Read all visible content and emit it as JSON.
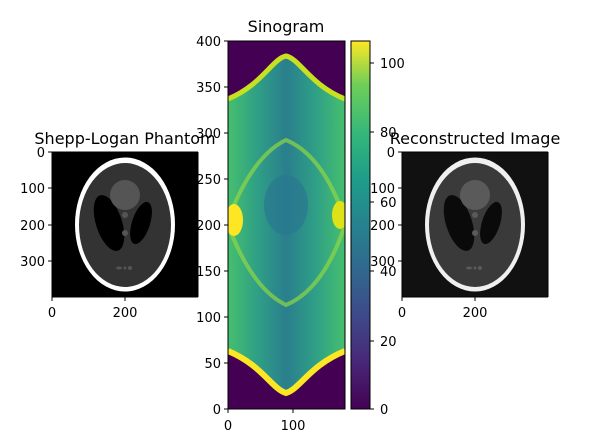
{
  "chart_data": [
    {
      "type": "image",
      "title": "Shepp-Logan Phantom",
      "colormap": "gray",
      "x_ticks": [
        "0",
        "200"
      ],
      "y_ticks": [
        "0",
        "100",
        "200",
        "300"
      ],
      "xlim": [
        0,
        400
      ],
      "ylim": [
        400,
        0
      ]
    },
    {
      "type": "heatmap",
      "title": "Sinogram",
      "colormap": "viridis",
      "x_ticks": [
        "0",
        "100"
      ],
      "y_ticks": [
        "0",
        "50",
        "100",
        "150",
        "200",
        "250",
        "300",
        "350",
        "400"
      ],
      "xlim": [
        0,
        180
      ],
      "ylim": [
        0,
        400
      ],
      "colorbar": {
        "ticks": [
          "0",
          "20",
          "40",
          "60",
          "80",
          "100"
        ],
        "range": [
          0,
          106
        ]
      }
    },
    {
      "type": "image",
      "title": "Reconstructed Image",
      "colormap": "gray",
      "x_ticks": [
        "0",
        "200"
      ],
      "y_ticks": [
        "0",
        "100",
        "200",
        "300"
      ],
      "xlim": [
        0,
        400
      ],
      "ylim": [
        400,
        0
      ]
    }
  ]
}
